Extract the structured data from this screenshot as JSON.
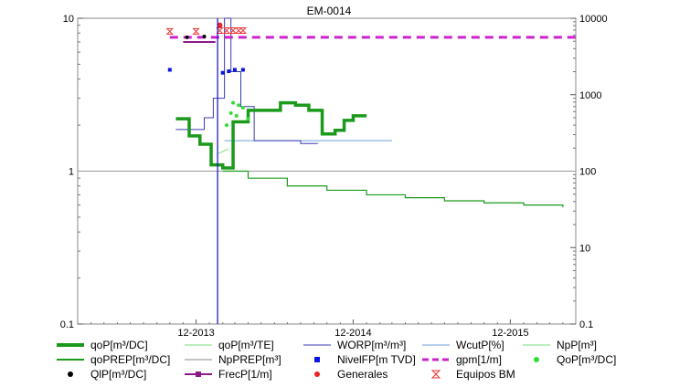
{
  "chart_data": {
    "type": "line",
    "title": "EM-0014",
    "x_ticks": [
      "12-2013",
      "12-2014",
      "12-2015"
    ],
    "x_range": [
      "2013-03-01",
      "2016-05-01"
    ],
    "y_left": {
      "scale": "log",
      "range": [
        0.1,
        10
      ],
      "ticks": [
        "0.1",
        "1",
        "10"
      ]
    },
    "y_right": {
      "scale": "log",
      "range": [
        1,
        10000
      ],
      "ticks": [
        "0.1",
        "10",
        "100",
        "1000",
        "10000"
      ]
    },
    "grid": false,
    "legend_placement": "bottom",
    "series": [
      {
        "name": "qoP[m³/DC]",
        "color": "#1a9a1a",
        "axis": "left",
        "points": [
          [
            "2013-10-15",
            2.2
          ],
          [
            "2013-11-15",
            1.7
          ],
          [
            "2013-12-10",
            1.5
          ],
          [
            "2014-01-05",
            1.1
          ],
          [
            "2014-02-01",
            1.05
          ],
          [
            "2014-02-25",
            2.1
          ],
          [
            "2014-04-01",
            2.5
          ],
          [
            "2014-06-15",
            2.8
          ],
          [
            "2014-07-20",
            2.7
          ],
          [
            "2014-08-20",
            2.5
          ],
          [
            "2014-09-20",
            1.75
          ],
          [
            "2014-10-20",
            1.85
          ],
          [
            "2014-11-10",
            2.15
          ],
          [
            "2014-12-01",
            2.3
          ],
          [
            "2015-01-01",
            2.3
          ]
        ]
      },
      {
        "name": "qoP[m³/TE]",
        "color": "#7ddc7d",
        "axis": "left",
        "points": [
          [
            "2014-01-20",
            1.3
          ],
          [
            "2014-02-15",
            1.4
          ]
        ]
      },
      {
        "name": "WORP[m³/m³]",
        "color": "#3a3ab5",
        "axis": "right",
        "points": [
          [
            "2013-10-15",
            350
          ],
          [
            "2013-12-20",
            500
          ],
          [
            "2014-01-10",
            900
          ],
          [
            "2014-02-05",
            10000
          ],
          [
            "2014-02-20",
            2000
          ],
          [
            "2014-03-15",
            700
          ],
          [
            "2014-04-15",
            250
          ],
          [
            "2014-05-20",
            250
          ],
          [
            "2014-07-01",
            250
          ],
          [
            "2014-08-01",
            230
          ],
          [
            "2014-09-10",
            230
          ]
        ]
      },
      {
        "name": "WcutP[%]",
        "color": "#6aa0d8",
        "axis": "right",
        "points": [
          [
            "2014-02-05",
            250
          ],
          [
            "2014-06-01",
            250
          ],
          [
            "2015-03-01",
            250
          ]
        ]
      },
      {
        "name": "NpP[m³]",
        "color": "#7ddc7d",
        "axis": "right",
        "points": []
      },
      {
        "name": "qoPREP[m³/DC]",
        "color": "#1a9a1a",
        "axis": "left",
        "points": [
          [
            "2014-02-01",
            1.0
          ],
          [
            "2014-04-01",
            0.9
          ],
          [
            "2014-07-01",
            0.8
          ],
          [
            "2014-10-01",
            0.75
          ],
          [
            "2015-01-01",
            0.7
          ],
          [
            "2015-04-01",
            0.67
          ],
          [
            "2015-07-01",
            0.64
          ],
          [
            "2015-10-01",
            0.62
          ],
          [
            "2016-01-01",
            0.6
          ],
          [
            "2016-04-01",
            0.58
          ]
        ]
      },
      {
        "name": "NpPREP[m³]",
        "color": "#888888",
        "axis": "right",
        "points": [
          [
            "2013-03-01",
            1
          ],
          [
            "2016-05-01",
            1
          ]
        ]
      },
      {
        "name": "NivelFP[m TVD]",
        "color": "#0a14e0",
        "axis": "left",
        "points": [
          [
            "2013-10-01",
            4.6
          ],
          [
            "2014-02-01",
            4.4
          ],
          [
            "2014-02-15",
            4.5
          ],
          [
            "2014-03-01",
            4.6
          ],
          [
            "2014-03-20",
            4.6
          ]
        ]
      },
      {
        "name": "gpm[1/m]",
        "color": "#cc22cc",
        "axis": "left",
        "points": [
          [
            "2013-10-01",
            7.5
          ],
          [
            "2016-05-01",
            7.5
          ]
        ]
      },
      {
        "name": "QoP[m³/DC]",
        "color": "#33dd33",
        "axis": "left",
        "points": [
          [
            "2014-02-10",
            2.0
          ],
          [
            "2014-02-25",
            2.8
          ],
          [
            "2014-03-05",
            2.3
          ],
          [
            "2014-03-20",
            2.6
          ],
          [
            "2014-04-01",
            2.2
          ],
          [
            "2014-02-20",
            2.4
          ],
          [
            "2014-03-10",
            2.7
          ]
        ]
      },
      {
        "name": "QlP[m³/DC]",
        "color": "#000000",
        "axis": "left",
        "points": [
          [
            "2013-11-10",
            7.5
          ],
          [
            "2013-12-20",
            7.6
          ]
        ]
      },
      {
        "name": "FrecP[1/m]",
        "color": "#8a1a8a",
        "axis": "left",
        "points": [
          [
            "2013-11-01",
            7.0
          ],
          [
            "2014-01-15",
            7.0
          ]
        ]
      },
      {
        "name": "Generales",
        "color": "#ee2222",
        "axis": "left",
        "points": [
          [
            "2014-01-25",
            9.0
          ]
        ]
      },
      {
        "name": "Equipos BM",
        "color": "#ee3333",
        "axis": "left",
        "points": [
          [
            "2013-10-01",
            8.2
          ],
          [
            "2013-12-01",
            8.2
          ],
          [
            "2014-01-25",
            8.3
          ],
          [
            "2014-02-10",
            8.3
          ],
          [
            "2014-02-25",
            8.3
          ],
          [
            "2014-03-10",
            8.3
          ],
          [
            "2014-03-20",
            8.3
          ]
        ]
      }
    ],
    "vertical_marker": {
      "x": "2014-01-20",
      "color": "#1010c0"
    }
  },
  "legend": [
    [
      "qoP[m³/DC]",
      "qoP[m³/TE]",
      "WORP[m³/m³]",
      "WcutP[%]",
      "NpP[m³]"
    ],
    [
      "qoPREP[m³/DC]",
      "NpPREP[m³]",
      "NivelFP[m TVD]",
      "gpm[1/m]",
      "QoP[m³/DC]"
    ],
    [
      "QlP[m³/DC]",
      "FrecP[1/m]",
      "Generales",
      "Equipos BM"
    ]
  ]
}
